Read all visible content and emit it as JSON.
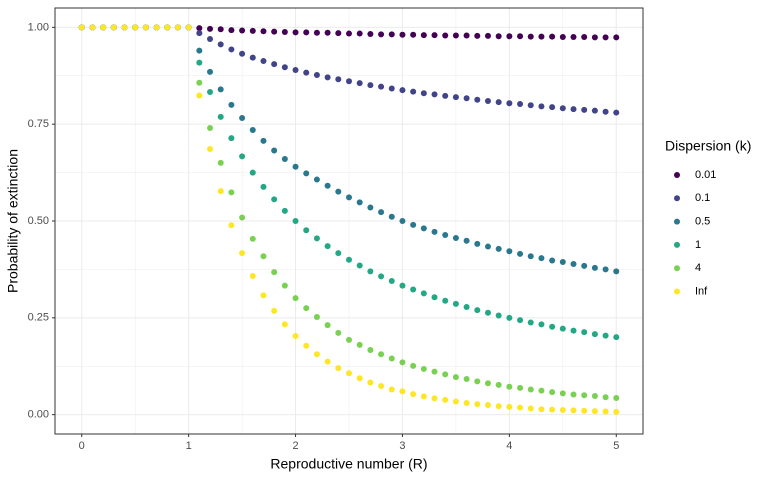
{
  "chart_data": {
    "type": "scatter",
    "x_label": "Reproductive number (R)",
    "y_label": "Probability of extinction",
    "legend_title": "Dispersion (k)",
    "legend_position": "right",
    "grid": true,
    "xlim": [
      -0.25,
      5.25
    ],
    "ylim": [
      -0.05,
      1.05
    ],
    "xticks": [
      0,
      1,
      2,
      3,
      4,
      5
    ],
    "xminorticks": [
      0.5,
      1.5,
      2.5,
      3.5,
      4.5
    ],
    "yticks": [
      {
        "value": 0,
        "label": "0.00"
      },
      {
        "value": 0.25,
        "label": "0.25"
      },
      {
        "value": 0.5,
        "label": "0.50"
      },
      {
        "value": 0.75,
        "label": "0.75"
      },
      {
        "value": 1,
        "label": "1.00"
      }
    ],
    "yminorticks": [
      0.125,
      0.375,
      0.625,
      0.875
    ],
    "x": [
      0,
      0.1,
      0.2,
      0.3,
      0.4,
      0.5,
      0.6,
      0.7,
      0.8,
      0.9,
      1.0,
      1.1,
      1.2,
      1.3,
      1.4,
      1.5,
      1.6,
      1.7,
      1.8,
      1.9,
      2.0,
      2.1,
      2.2,
      2.3,
      2.4,
      2.5,
      2.6,
      2.7,
      2.8,
      2.9,
      3.0,
      3.1,
      3.2,
      3.3,
      3.4,
      3.5,
      3.6,
      3.7,
      3.8,
      3.9,
      4.0,
      4.1,
      4.2,
      4.3,
      4.4,
      4.5,
      4.6,
      4.7,
      4.8,
      4.9,
      5.0
    ],
    "series": [
      {
        "name": "0.01",
        "color": "#440154",
        "values": [
          1,
          1,
          1,
          1,
          1,
          1,
          1,
          1,
          1,
          1,
          1,
          0.998,
          0.996,
          0.995,
          0.993,
          0.992,
          0.991,
          0.99,
          0.989,
          0.988,
          0.987,
          0.987,
          0.986,
          0.986,
          0.985,
          0.984,
          0.984,
          0.983,
          0.982,
          0.982,
          0.981,
          0.981,
          0.98,
          0.98,
          0.979,
          0.979,
          0.979,
          0.978,
          0.978,
          0.977,
          0.977,
          0.977,
          0.976,
          0.976,
          0.976,
          0.975,
          0.975,
          0.975,
          0.974,
          0.974,
          0.974
        ]
      },
      {
        "name": "0.1",
        "color": "#414487",
        "values": [
          1,
          1,
          1,
          1,
          1,
          1,
          1,
          1,
          1,
          1,
          1,
          0.985,
          0.97,
          0.956,
          0.943,
          0.932,
          0.922,
          0.913,
          0.905,
          0.897,
          0.89,
          0.883,
          0.877,
          0.871,
          0.866,
          0.861,
          0.856,
          0.851,
          0.847,
          0.842,
          0.838,
          0.834,
          0.83,
          0.827,
          0.823,
          0.82,
          0.817,
          0.813,
          0.81,
          0.807,
          0.804,
          0.802,
          0.799,
          0.796,
          0.794,
          0.791,
          0.789,
          0.787,
          0.785,
          0.782,
          0.78
        ]
      },
      {
        "name": "0.5",
        "color": "#2A788E",
        "values": [
          1,
          1,
          1,
          1,
          1,
          1,
          1,
          1,
          1,
          1,
          1,
          0.94,
          0.885,
          0.84,
          0.8,
          0.766,
          0.735,
          0.707,
          0.682,
          0.66,
          0.64,
          0.623,
          0.607,
          0.591,
          0.576,
          0.561,
          0.548,
          0.535,
          0.523,
          0.511,
          0.5,
          0.49,
          0.481,
          0.472,
          0.464,
          0.456,
          0.449,
          0.441,
          0.434,
          0.428,
          0.422,
          0.415,
          0.409,
          0.404,
          0.398,
          0.394,
          0.389,
          0.384,
          0.379,
          0.375,
          0.37
        ]
      },
      {
        "name": "1",
        "color": "#22A884",
        "values": [
          1,
          1,
          1,
          1,
          1,
          1,
          1,
          1,
          1,
          1,
          1,
          0.909,
          0.833,
          0.769,
          0.714,
          0.667,
          0.625,
          0.588,
          0.556,
          0.526,
          0.5,
          0.476,
          0.455,
          0.435,
          0.417,
          0.4,
          0.385,
          0.37,
          0.357,
          0.345,
          0.333,
          0.323,
          0.313,
          0.303,
          0.294,
          0.286,
          0.278,
          0.27,
          0.263,
          0.256,
          0.25,
          0.244,
          0.238,
          0.233,
          0.227,
          0.222,
          0.217,
          0.213,
          0.208,
          0.204,
          0.2
        ]
      },
      {
        "name": "4",
        "color": "#7AD151",
        "values": [
          1,
          1,
          1,
          1,
          1,
          1,
          1,
          1,
          1,
          1,
          1,
          0.857,
          0.74,
          0.65,
          0.574,
          0.509,
          0.454,
          0.409,
          0.368,
          0.333,
          0.301,
          0.275,
          0.252,
          0.231,
          0.211,
          0.193,
          0.18,
          0.167,
          0.156,
          0.145,
          0.135,
          0.126,
          0.118,
          0.111,
          0.104,
          0.097,
          0.092,
          0.086,
          0.081,
          0.077,
          0.072,
          0.069,
          0.065,
          0.062,
          0.058,
          0.055,
          0.052,
          0.05,
          0.048,
          0.045,
          0.043
        ]
      },
      {
        "name": "Inf",
        "color": "#FDE725",
        "values": [
          1,
          1,
          1,
          1,
          1,
          1,
          1,
          1,
          1,
          1,
          1,
          0.824,
          0.686,
          0.577,
          0.489,
          0.417,
          0.358,
          0.308,
          0.268,
          0.233,
          0.203,
          0.178,
          0.156,
          0.137,
          0.12,
          0.107,
          0.094,
          0.083,
          0.074,
          0.065,
          0.06,
          0.053,
          0.047,
          0.042,
          0.038,
          0.034,
          0.03,
          0.027,
          0.025,
          0.022,
          0.02,
          0.018,
          0.016,
          0.014,
          0.013,
          0.012,
          0.011,
          0.01,
          0.009,
          0.008,
          0.007
        ]
      }
    ]
  }
}
